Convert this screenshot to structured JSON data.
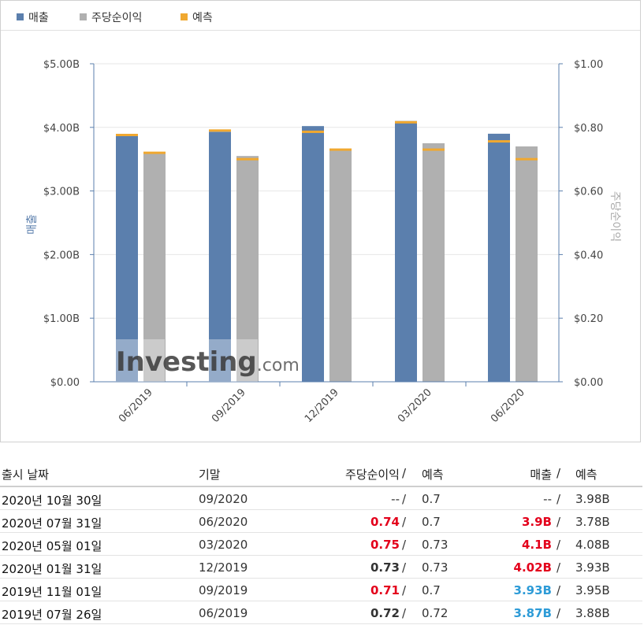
{
  "legend": [
    {
      "label": "매출",
      "color": "#5b7fad"
    },
    {
      "label": "주당순이익",
      "color": "#b0b0b0"
    },
    {
      "label": "예측",
      "color": "#f0a830"
    }
  ],
  "watermark": {
    "brand": "Investing",
    "suffix": ".com"
  },
  "chart_data": {
    "type": "bar",
    "categories": [
      "06/2019",
      "09/2019",
      "12/2019",
      "03/2020",
      "06/2020"
    ],
    "series": [
      {
        "name": "매출",
        "axis": "left",
        "values": [
          3.87,
          3.93,
          4.02,
          4.1,
          3.9
        ],
        "color": "#5b7fad"
      },
      {
        "name": "주당순이익",
        "axis": "right",
        "values": [
          0.72,
          0.71,
          0.73,
          0.75,
          0.74
        ],
        "color": "#b0b0b0"
      },
      {
        "name": "예측",
        "kind": "marker",
        "revenue_forecast": [
          3.88,
          3.95,
          3.93,
          4.08,
          3.78
        ],
        "eps_forecast": [
          0.72,
          0.7,
          0.73,
          0.73,
          0.7
        ],
        "color": "#f0a830"
      }
    ],
    "ylabel_left": "매출",
    "ylabel_right": "주당순이익",
    "yticks_left": [
      "$0.00",
      "$1.00B",
      "$2.00B",
      "$3.00B",
      "$4.00B",
      "$5.00B"
    ],
    "yticks_right": [
      "$0.00",
      "$0.20",
      "$0.40",
      "$0.60",
      "$0.80",
      "$1.00"
    ],
    "ylim_left": [
      0,
      5
    ],
    "ylim_right": [
      0,
      1
    ],
    "grid": true,
    "legend_position": "top-left"
  },
  "table": {
    "headers": {
      "date": "출시 날짜",
      "period": "기말",
      "eps": "주당순이익",
      "sep": "/",
      "forecast": "예측",
      "revenue": "매출"
    },
    "rows": [
      {
        "date": "2020년 10월 30일",
        "period": "09/2020",
        "eps": "--",
        "eps_style": "plain",
        "eps_forecast": "0.7",
        "revenue": "--",
        "rev_style": "plain",
        "rev_forecast": "3.98B"
      },
      {
        "date": "2020년 07월 31일",
        "period": "06/2020",
        "eps": "0.74",
        "eps_style": "red",
        "eps_forecast": "0.7",
        "revenue": "3.9B",
        "rev_style": "red",
        "rev_forecast": "3.78B"
      },
      {
        "date": "2020년 05월 01일",
        "period": "03/2020",
        "eps": "0.75",
        "eps_style": "red",
        "eps_forecast": "0.73",
        "revenue": "4.1B",
        "rev_style": "red",
        "rev_forecast": "4.08B"
      },
      {
        "date": "2020년 01월 31일",
        "period": "12/2019",
        "eps": "0.73",
        "eps_style": "black",
        "eps_forecast": "0.73",
        "revenue": "4.02B",
        "rev_style": "red",
        "rev_forecast": "3.93B"
      },
      {
        "date": "2019년 11월 01일",
        "period": "09/2019",
        "eps": "0.71",
        "eps_style": "red",
        "eps_forecast": "0.7",
        "revenue": "3.93B",
        "rev_style": "blue",
        "rev_forecast": "3.95B"
      },
      {
        "date": "2019년 07월 26일",
        "period": "06/2019",
        "eps": "0.72",
        "eps_style": "black",
        "eps_forecast": "0.72",
        "revenue": "3.87B",
        "rev_style": "blue",
        "rev_forecast": "3.88B"
      }
    ]
  }
}
